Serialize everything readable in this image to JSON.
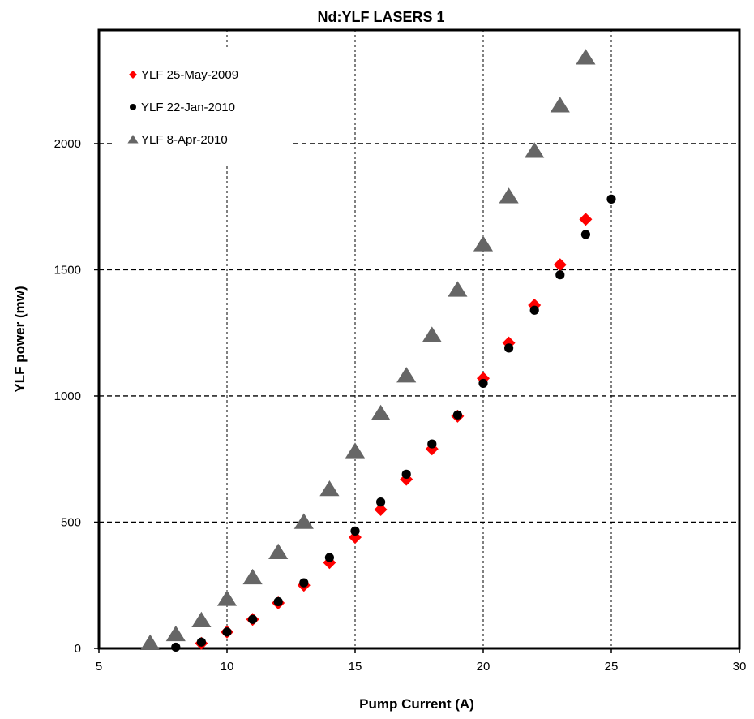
{
  "chart_data": {
    "type": "scatter",
    "title": "Nd:YLF LASERS 1",
    "xlabel": "Pump Current (A)",
    "ylabel": "YLF power (mw)",
    "xlim": [
      5,
      30
    ],
    "ylim": [
      0,
      2450
    ],
    "xticks": [
      5,
      10,
      15,
      20,
      25,
      30
    ],
    "yticks": [
      0,
      500,
      1000,
      1500,
      2000
    ],
    "x_grid_lines": [
      10,
      15,
      20,
      25
    ],
    "y_grid_lines": [
      500,
      1000,
      1500,
      2000
    ],
    "grid": true,
    "legend_position": "top-left",
    "series": [
      {
        "name": "YLF 25-May-2009",
        "marker": "diamond",
        "color": "#ff0000",
        "x": [
          9,
          10,
          11,
          12,
          13,
          14,
          15,
          16,
          17,
          18,
          19,
          20,
          21,
          22,
          23,
          24
        ],
        "y": [
          20,
          65,
          115,
          180,
          250,
          340,
          440,
          550,
          670,
          790,
          920,
          1070,
          1210,
          1360,
          1520,
          1700
        ]
      },
      {
        "name": "YLF 22-Jan-2010",
        "marker": "circle",
        "color": "#000000",
        "x": [
          8,
          9,
          10,
          11,
          12,
          13,
          14,
          15,
          16,
          17,
          18,
          19,
          20,
          21,
          22,
          23,
          24,
          25
        ],
        "y": [
          5,
          25,
          65,
          115,
          185,
          260,
          360,
          465,
          580,
          690,
          810,
          925,
          1050,
          1190,
          1340,
          1480,
          1640,
          1780
        ]
      },
      {
        "name": "YLF 8-Apr-2010",
        "marker": "triangle",
        "color": "#666666",
        "x": [
          7,
          8,
          9,
          10,
          11,
          12,
          13,
          14,
          15,
          16,
          17,
          18,
          19,
          20,
          21,
          22,
          23,
          24
        ],
        "y": [
          20,
          55,
          110,
          195,
          280,
          380,
          500,
          630,
          780,
          930,
          1080,
          1240,
          1420,
          1600,
          1790,
          1970,
          2150,
          2340
        ]
      }
    ]
  }
}
